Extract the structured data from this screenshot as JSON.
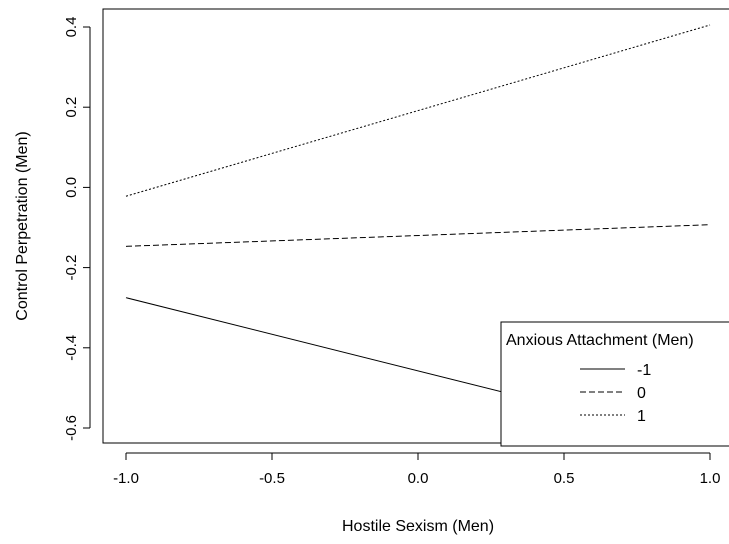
{
  "chart_data": {
    "type": "line",
    "title": "",
    "xlabel": "Hostile Sexism (Men)",
    "ylabel": "Control Perpetration (Men)",
    "xlim": [
      -1.0,
      1.0
    ],
    "ylim": [
      -0.6,
      0.4
    ],
    "xticks": [
      "-1.0",
      "-0.5",
      "0.0",
      "0.5",
      "1.0"
    ],
    "yticks": [
      "-0.6",
      "-0.4",
      "-0.2",
      "0.0",
      "0.2",
      "0.4"
    ],
    "x": [
      -1.0,
      1.0
    ],
    "series": [
      {
        "name": "-1",
        "style": "solid",
        "values": [
          -0.275,
          -0.64
        ]
      },
      {
        "name": "0",
        "style": "dashed",
        "values": [
          -0.147,
          -0.093
        ]
      },
      {
        "name": "1",
        "style": "dotted",
        "values": [
          -0.022,
          0.405
        ]
      }
    ],
    "legend": {
      "title": "Anxious Attachment (Men)",
      "position": "bottom-right"
    },
    "grid": false
  }
}
